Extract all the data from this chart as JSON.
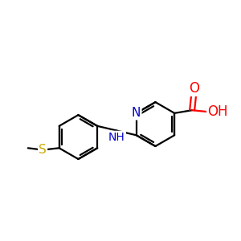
{
  "background_color": "#ffffff",
  "atom_colors": {
    "C": "#000000",
    "N": "#0000cc",
    "O": "#ff0000",
    "S": "#ccaa00",
    "H": "#000000"
  },
  "bond_color": "#000000",
  "bond_width": 1.6,
  "font_size_atom": 10,
  "fig_size": [
    3.0,
    3.0
  ],
  "dpi": 100,
  "xlim": [
    -1.0,
    5.5
  ],
  "ylim": [
    -2.0,
    2.5
  ]
}
